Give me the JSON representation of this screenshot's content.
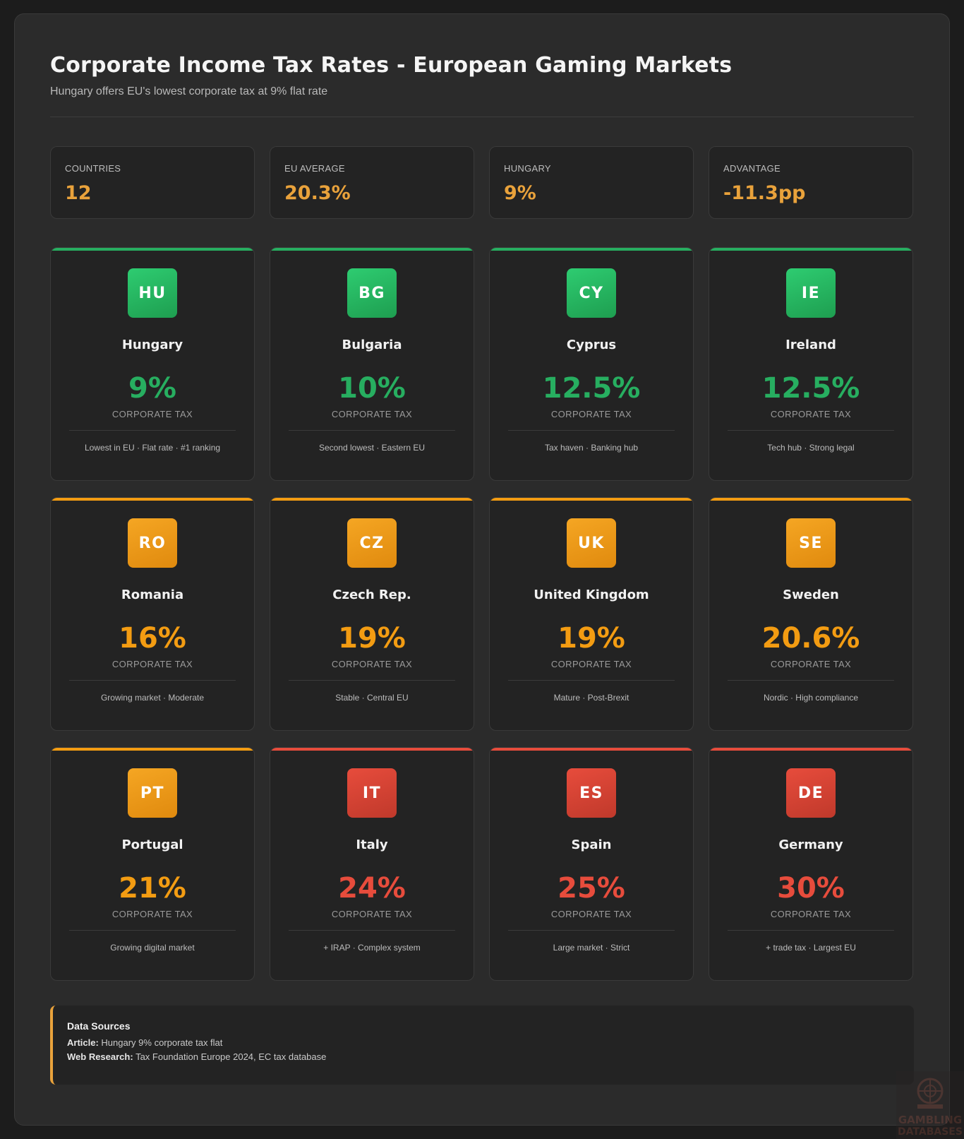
{
  "header": {
    "title": "Corporate Income Tax Rates - European Gaming Markets",
    "subtitle": "Hungary offers EU's lowest corporate tax at 9% flat rate"
  },
  "stats": [
    {
      "label": "COUNTRIES",
      "value": "12"
    },
    {
      "label": "EU AVERAGE",
      "value": "20.3%"
    },
    {
      "label": "HUNGARY",
      "value": "9%"
    },
    {
      "label": "ADVANTAGE",
      "value": "-11.3pp"
    }
  ],
  "colors": {
    "green": "#27ae60",
    "orange": "#f39c12",
    "red": "#e74c3c",
    "accent": "#e9a23b"
  },
  "chart_data": {
    "type": "table",
    "value_label": "CORPORATE TAX",
    "countries": [
      {
        "code": "HU",
        "name": "Hungary",
        "rate": "9%",
        "value": 9,
        "tier": "green",
        "note": "Lowest in EU · Flat rate · #1 ranking"
      },
      {
        "code": "BG",
        "name": "Bulgaria",
        "rate": "10%",
        "value": 10,
        "tier": "green",
        "note": "Second lowest · Eastern EU"
      },
      {
        "code": "CY",
        "name": "Cyprus",
        "rate": "12.5%",
        "value": 12.5,
        "tier": "green",
        "note": "Tax haven · Banking hub"
      },
      {
        "code": "IE",
        "name": "Ireland",
        "rate": "12.5%",
        "value": 12.5,
        "tier": "green",
        "note": "Tech hub · Strong legal"
      },
      {
        "code": "RO",
        "name": "Romania",
        "rate": "16%",
        "value": 16,
        "tier": "orange",
        "note": "Growing market · Moderate"
      },
      {
        "code": "CZ",
        "name": "Czech Rep.",
        "rate": "19%",
        "value": 19,
        "tier": "orange",
        "note": "Stable · Central EU"
      },
      {
        "code": "UK",
        "name": "United Kingdom",
        "rate": "19%",
        "value": 19,
        "tier": "orange",
        "note": "Mature · Post-Brexit"
      },
      {
        "code": "SE",
        "name": "Sweden",
        "rate": "20.6%",
        "value": 20.6,
        "tier": "orange",
        "note": "Nordic · High compliance"
      },
      {
        "code": "PT",
        "name": "Portugal",
        "rate": "21%",
        "value": 21,
        "tier": "orange",
        "note": "Growing digital market"
      },
      {
        "code": "IT",
        "name": "Italy",
        "rate": "24%",
        "value": 24,
        "tier": "red",
        "note": "+ IRAP · Complex system"
      },
      {
        "code": "ES",
        "name": "Spain",
        "rate": "25%",
        "value": 25,
        "tier": "red",
        "note": "Large market · Strict"
      },
      {
        "code": "DE",
        "name": "Germany",
        "rate": "30%",
        "value": 30,
        "tier": "red",
        "note": "+ trade tax · Largest EU"
      }
    ]
  },
  "sources": {
    "title": "Data Sources",
    "article_label": "Article:",
    "article_text": "Hungary 9% corporate tax flat",
    "research_label": "Web Research:",
    "research_text": "Tax Foundation Europe 2024, EC tax database"
  },
  "watermark": {
    "icon": "roulette-icon",
    "lines": [
      "GAMBLING",
      "DATABASES"
    ]
  }
}
